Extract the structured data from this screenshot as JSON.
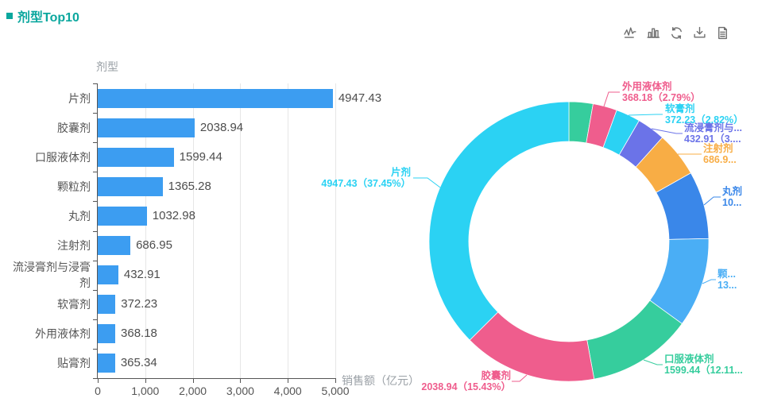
{
  "page": {
    "title": "剂型Top10"
  },
  "theme": {
    "title_color": "#0ba79e",
    "bar_color": "#3c9df1",
    "axis_line_color": "#555555",
    "grid_line_color": "#e6e6e6"
  },
  "toolbar": {
    "icons": [
      {
        "name": "switch-to-line-chart"
      },
      {
        "name": "switch-to-bar-chart"
      },
      {
        "name": "refresh"
      },
      {
        "name": "download-image"
      },
      {
        "name": "data-view"
      }
    ]
  },
  "chart_data": [
    {
      "type": "bar",
      "orientation": "horizontal",
      "title": "剂型",
      "xlabel": "销售额（亿元）",
      "ylabel": "剂型",
      "categories": [
        "片剂",
        "胶囊剂",
        "口服液体剂",
        "颗粒剂",
        "丸剂",
        "注射剂",
        "流浸膏剂与浸膏剂",
        "软膏剂",
        "外用液体剂",
        "贴膏剂"
      ],
      "values": [
        4947.43,
        2038.94,
        1599.44,
        1365.28,
        1032.98,
        686.95,
        432.91,
        372.23,
        368.18,
        365.34
      ],
      "value_labels": [
        "4947.43",
        "2038.94",
        "1599.44",
        "1365.28",
        "1032.98",
        "686.95",
        "432.91",
        "372.23",
        "368.18",
        "365.34"
      ],
      "xlim": [
        0,
        5000
      ],
      "xticks": [
        "0",
        "1,000",
        "2,000",
        "3,000",
        "4,000",
        "5,000"
      ],
      "bar_color": "#3c9df1",
      "grid": true,
      "legend": false
    },
    {
      "type": "pie",
      "subtype": "donut",
      "clockwise": true,
      "start_angle": "top",
      "slices": [
        {
          "name": "贴膏剂",
          "value": 365.34,
          "color": "#36cd9d",
          "label_lines": null
        },
        {
          "name": "外用液体剂",
          "value": 368.18,
          "color": "#ef5d8d",
          "label_lines": [
            "外用液体剂",
            "368.18（2.79%）"
          ]
        },
        {
          "name": "软膏剂",
          "value": 372.23,
          "color": "#2bd2f3",
          "label_lines": [
            "软膏剂",
            "372.23（2.82%）"
          ]
        },
        {
          "name": "流浸膏剂与浸膏剂",
          "value": 432.91,
          "color": "#6b73e8",
          "label_lines": [
            "流浸膏剂与...",
            "432.91（3...."
          ]
        },
        {
          "name": "注射剂",
          "value": 686.95,
          "color": "#f8ad45",
          "label_lines": [
            "注射剂",
            "686.9..."
          ]
        },
        {
          "name": "丸剂",
          "value": 1032.98,
          "color": "#3a87e9",
          "label_lines": [
            "丸剂",
            "10..."
          ]
        },
        {
          "name": "颗粒剂",
          "value": 1365.28,
          "color": "#4aaef5",
          "label_lines": [
            "颗...",
            "13..."
          ]
        },
        {
          "name": "口服液体剂",
          "value": 1599.44,
          "color": "#36cd9d",
          "label_lines": [
            "口服液体剂",
            "1599.44（12.11..."
          ]
        },
        {
          "name": "胶囊剂",
          "value": 2038.94,
          "color": "#ef5d8d",
          "label_lines": [
            "胶囊剂",
            "2038.94（15.43%）"
          ]
        },
        {
          "name": "片剂",
          "value": 4947.43,
          "color": "#2bd2f3",
          "label_lines": [
            "片剂",
            "4947.43（37.45%）"
          ]
        }
      ]
    }
  ]
}
